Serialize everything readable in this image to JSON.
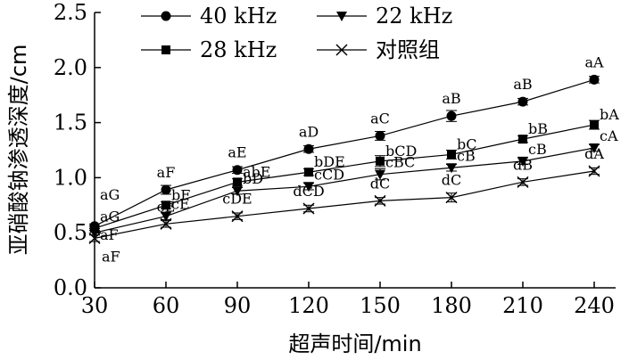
{
  "chart_data": {
    "type": "line",
    "xlabel": "超声时间/min",
    "ylabel": "亚硝酸钠渗透深度/cm",
    "x": [
      30,
      60,
      90,
      120,
      150,
      180,
      210,
      240
    ],
    "xlim": [
      30,
      240
    ],
    "ylim": [
      0,
      2.5
    ],
    "xticks": [
      "30",
      "60",
      "90",
      "120",
      "150",
      "180",
      "210",
      "240"
    ],
    "yticks": [
      "0.0",
      "0.5",
      "1.0",
      "1.5",
      "2.0",
      "2.5"
    ],
    "grid": false,
    "legend_position": "top",
    "series": [
      {
        "name": "40 kHz",
        "marker": "circle",
        "values": [
          0.56,
          0.89,
          1.07,
          1.26,
          1.38,
          1.56,
          1.69,
          1.89
        ],
        "errors": [
          0.02,
          0.04,
          0.03,
          0.03,
          0.04,
          0.05,
          0.03,
          0.03
        ],
        "labels": [
          "aG",
          "aF",
          "aE",
          "aD",
          "aC",
          "aB",
          "aB",
          "aA"
        ]
      },
      {
        "name": "22 kHz",
        "marker": "triangle-down",
        "values": [
          0.5,
          0.65,
          0.88,
          0.92,
          1.03,
          1.09,
          1.15,
          1.27
        ],
        "errors": [
          0.02,
          0.03,
          0.03,
          0.03,
          0.05,
          0.03,
          0.03,
          0.03
        ],
        "labels": [
          "aF",
          "cE",
          "bD",
          "cCD",
          "cBC",
          "cB",
          "cB",
          "cA"
        ]
      },
      {
        "name": "28 kHz",
        "marker": "square",
        "values": [
          0.54,
          0.75,
          0.96,
          1.05,
          1.15,
          1.21,
          1.35,
          1.48
        ],
        "errors": [
          0.02,
          0.03,
          0.03,
          0.03,
          0.05,
          0.04,
          0.03,
          0.04
        ],
        "labels": [
          "aG",
          "bF",
          "abE",
          "bDE",
          "bCD",
          "bC",
          "bB",
          "bA"
        ]
      },
      {
        "name": "对照组",
        "marker": "x",
        "values": [
          0.45,
          0.58,
          0.65,
          0.72,
          0.79,
          0.82,
          0.96,
          1.06
        ],
        "errors": [
          0.03,
          0.03,
          0.03,
          0.03,
          0.03,
          0.04,
          0.03,
          0.03
        ],
        "labels": [
          "aF",
          "cE",
          "cDE",
          "dCD",
          "dC",
          "dC",
          "dB",
          "dA"
        ]
      }
    ]
  }
}
